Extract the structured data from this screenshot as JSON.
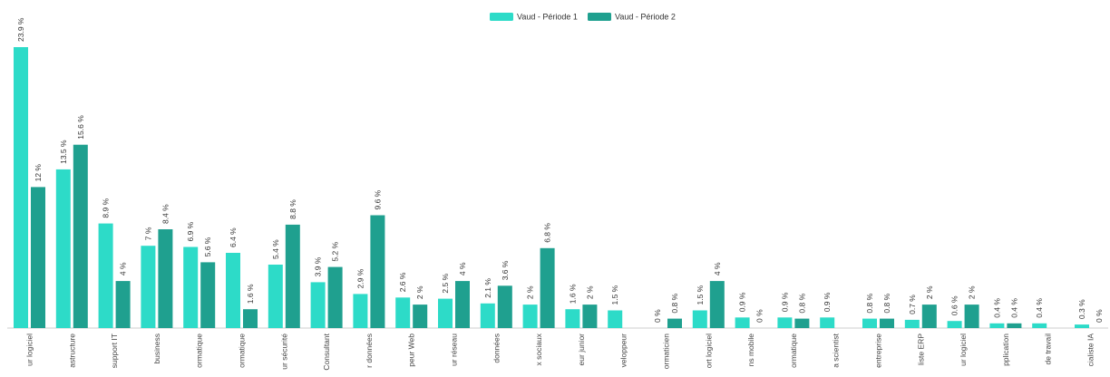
{
  "colors": {
    "series1": "#2ddbc8",
    "series2": "#1fa08f"
  },
  "chart_data": {
    "type": "bar",
    "grid": false,
    "legend_position": "top-center",
    "ylim": [
      0,
      25
    ],
    "categories": [
      "ur logiciel",
      "astructure",
      "support IT",
      "business",
      "ormatique",
      "ormatique",
      "ur sécurité",
      "Consultant",
      "r données",
      "peur Web",
      "ur réseau",
      "données",
      "x sociaux",
      "eur junior",
      "veloppeur",
      "ormaticien",
      "ort logiciel",
      "ns mobile",
      "ormatique",
      "a scientist",
      "entreprise",
      "liste ERP",
      "ur logiciel",
      "pplication",
      "de travail",
      "cialiste IA",
      ""
    ],
    "series": [
      {
        "name": "Vaud - Période 1",
        "values": [
          23.9,
          13.5,
          8.9,
          7,
          6.9,
          6.4,
          5.4,
          3.9,
          2.9,
          2.6,
          2.5,
          2.1,
          2,
          1.6,
          1.5,
          0,
          1.5,
          0.9,
          0.9,
          0.9,
          0.8,
          0.7,
          0.6,
          0.4,
          0.4,
          0.3,
          0
        ],
        "labels": [
          "23.9 %",
          "13.5 %",
          "8.9 %",
          "7 %",
          "6.9 %",
          "6.4 %",
          "5.4 %",
          "3.9 %",
          "2.9 %",
          "2.6 %",
          "2.5 %",
          "2.1 %",
          "2 %",
          "1.6 %",
          "1.5 %",
          "0 %",
          "1.5 %",
          "0.9 %",
          "0.9 %",
          "0.9 %",
          "0.8 %",
          "0.7 %",
          "0.6 %",
          "0.4 %",
          "0.4 %",
          "0.3 %",
          "0 %"
        ]
      },
      {
        "name": "Vaud - Période 2",
        "values": [
          12,
          15.6,
          4,
          8.4,
          5.6,
          1.6,
          8.8,
          5.2,
          9.6,
          2,
          4,
          3.6,
          6.8,
          2,
          null,
          0.8,
          4,
          0,
          0.8,
          null,
          0.8,
          2,
          2,
          0.4,
          null,
          0,
          null
        ],
        "labels": [
          "12 %",
          "15.6 %",
          "4 %",
          "8.4 %",
          "5.6 %",
          "1.6 %",
          "8.8 %",
          "5.2 %",
          "9.6 %",
          "2 %",
          "4 %",
          "3.6 %",
          "6.8 %",
          "2 %",
          null,
          "0.8 %",
          "4 %",
          "0 %",
          "0.8 %",
          null,
          "0.8 %",
          "2 %",
          "2 %",
          "0.4 %",
          null,
          "0 %",
          null
        ]
      }
    ]
  }
}
